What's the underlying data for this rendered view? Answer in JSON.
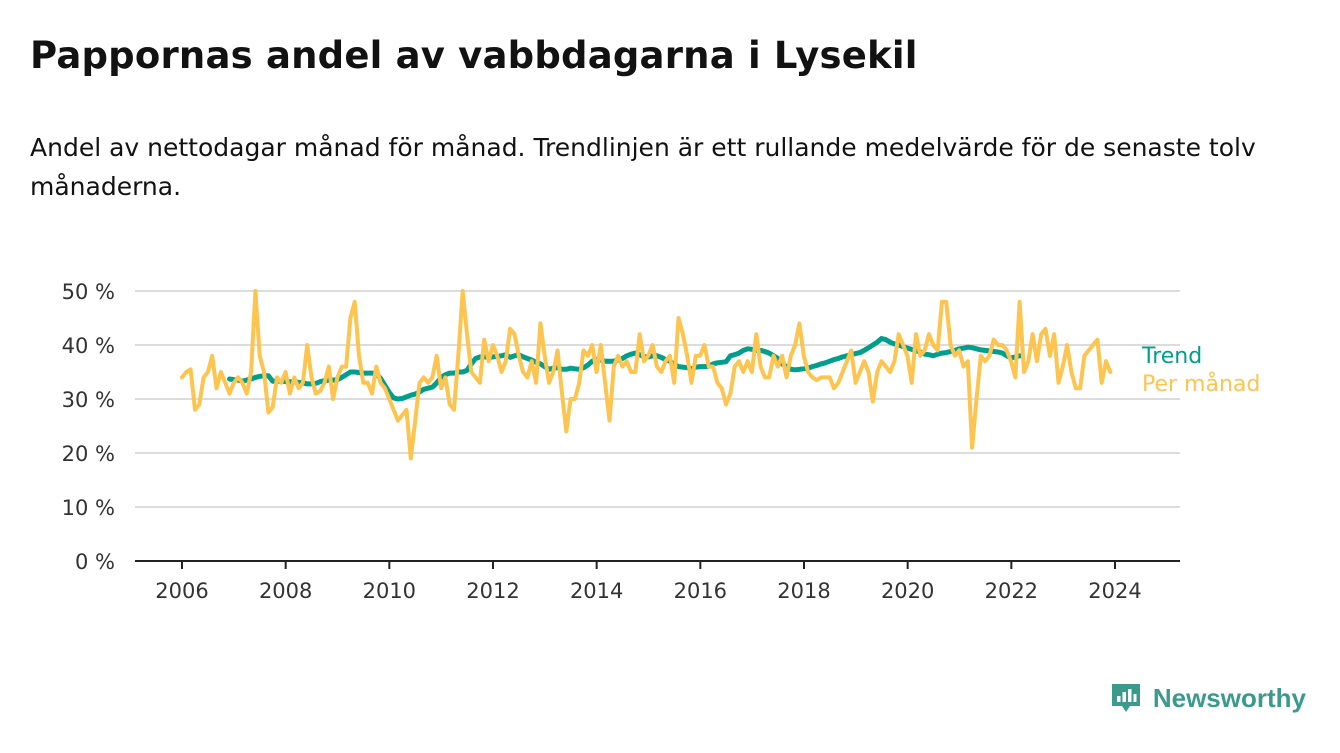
{
  "title": "Pappornas andel av vabbdagarna i Lysekil",
  "subtitle": "Andel av nettodagar månad för månad. Trendlinjen är ett rullande medelvärde för de senaste tolv månaderna.",
  "brand": {
    "name": "Newsworthy",
    "icon": "bar-chart-badge-icon"
  },
  "colors": {
    "monthly": "#fdc44f",
    "trend": "#009e8c",
    "grid": "#dcdcdc",
    "axis": "#222222",
    "text": "#121212",
    "brand": "#3a9a8c"
  },
  "chart_data": {
    "type": "line",
    "x_unit": "decimal year (each point is a month)",
    "xlim": [
      2005.5,
      2025.0
    ],
    "ylim": [
      0,
      50
    ],
    "y_ticks": [
      0,
      10,
      20,
      30,
      40,
      50
    ],
    "y_tick_labels": [
      "0 %",
      "10 %",
      "20 %",
      "30 %",
      "40 %",
      "50 %"
    ],
    "x_ticks": [
      2006,
      2008,
      2010,
      2012,
      2014,
      2016,
      2018,
      2020,
      2022,
      2024
    ],
    "x_tick_labels": [
      "2006",
      "2008",
      "2010",
      "2012",
      "2014",
      "2016",
      "2018",
      "2020",
      "2022",
      "2024"
    ],
    "grid": "horizontal",
    "legend": "inline labels at line ends, right",
    "series": [
      {
        "name": "Per månad",
        "color": "#fdc44f",
        "x_start": 2006.0,
        "step": 0.0833,
        "values": [
          34,
          35,
          35.5,
          28,
          29,
          34,
          35,
          38,
          32,
          35,
          33,
          31,
          33,
          34,
          33,
          31,
          35,
          50,
          38,
          35,
          27.5,
          28.5,
          34,
          33,
          35,
          31,
          34,
          32,
          33,
          40,
          34,
          31,
          31.5,
          33,
          36,
          30,
          34,
          36,
          36,
          45,
          48,
          38,
          33,
          33,
          31,
          36,
          33,
          32,
          30,
          28,
          26,
          27,
          28,
          19,
          26,
          33,
          34,
          33,
          34,
          38,
          32,
          34,
          29,
          28,
          38,
          50,
          42,
          35,
          34,
          33,
          41,
          37,
          40,
          38,
          35,
          37,
          43,
          42,
          38,
          35,
          34,
          37,
          33,
          44,
          38,
          33,
          35,
          39,
          31,
          24,
          30,
          30,
          33,
          39,
          38,
          40,
          35,
          40,
          33,
          26,
          36,
          38,
          36,
          37,
          35,
          35,
          42,
          37,
          38,
          40,
          36,
          35,
          37,
          38,
          33,
          45,
          42,
          38,
          33,
          38,
          38,
          40,
          36,
          36,
          33,
          32,
          29,
          31,
          36,
          37,
          35,
          37,
          35,
          42,
          36,
          34,
          34,
          38,
          36,
          38,
          34,
          38,
          40,
          44,
          38,
          35,
          34,
          33.5,
          34,
          34,
          34,
          32,
          33,
          35,
          37,
          39,
          33,
          35,
          37,
          35,
          29.5,
          35,
          37,
          36,
          35,
          37,
          42,
          40,
          38,
          33,
          42,
          38,
          39,
          42,
          40,
          39,
          48,
          48,
          40,
          38,
          39,
          36,
          37,
          21,
          30,
          38,
          37,
          38,
          41,
          40,
          40,
          39,
          37,
          34,
          48,
          35,
          37,
          42,
          37,
          42,
          43,
          38,
          42,
          33,
          36,
          40,
          35,
          32,
          32,
          38,
          39,
          40,
          41,
          33,
          37,
          35
        ]
      },
      {
        "name": "Trend",
        "color": "#009e8c",
        "x_start": 2006.917,
        "step": 0.0833,
        "values": [
          33.7,
          33.6,
          33.5,
          33.3,
          33.5,
          33.7,
          34,
          34.2,
          34.3,
          34.3,
          33.3,
          33.3,
          33.3,
          33.2,
          33.2,
          33.2,
          33.1,
          33,
          32.8,
          32.8,
          32.9,
          33.2,
          33.4,
          33.5,
          33.5,
          33.6,
          34,
          34.5,
          35,
          35,
          34.9,
          34.8,
          34.8,
          34.8,
          34.7,
          33.8,
          32.5,
          31.2,
          30.2,
          30,
          30.1,
          30.4,
          30.7,
          30.9,
          31.3,
          31.8,
          32,
          32.2,
          33,
          34,
          34.5,
          34.8,
          34.8,
          35,
          35,
          35.3,
          36.5,
          37.5,
          37.8,
          37.8,
          37.7,
          37.8,
          37.9,
          38,
          38.2,
          37.7,
          38,
          38.2,
          37.8,
          37.5,
          37.2,
          36.8,
          36.5,
          36,
          35.5,
          35.7,
          35.8,
          35.5,
          35.5,
          35.7,
          35.6,
          35.5,
          35.8,
          36.3,
          37,
          37.3,
          37.2,
          37,
          37,
          37,
          37.2,
          37.5,
          38,
          38.3,
          38.5,
          38.2,
          37.8,
          37.8,
          38,
          38,
          37.7,
          37.3,
          37,
          36.4,
          36,
          35.9,
          35.8,
          35.6,
          35.9,
          36,
          36,
          36.1,
          36.5,
          36.7,
          36.8,
          36.9,
          38,
          38.2,
          38.5,
          39,
          39.3,
          39.2,
          39,
          39,
          38.8,
          38.5,
          38,
          37.5,
          36.5,
          36,
          35.5,
          35.4,
          35.5,
          35.6,
          35.7,
          36,
          36.2,
          36.5,
          36.7,
          37,
          37.3,
          37.5,
          37.8,
          38,
          38.2,
          38.4,
          38.6,
          39,
          39.5,
          40,
          40.5,
          41.2,
          41,
          40.5,
          40.2,
          40,
          39.7,
          39.4,
          39.2,
          38.9,
          38.7,
          38.3,
          38.2,
          38,
          38.3,
          38.5,
          38.6,
          38.8,
          39,
          39.3,
          39.4,
          39.6,
          39.5,
          39.3,
          39.1,
          39,
          38.9,
          38.8,
          38.7,
          38.5,
          38,
          37.6,
          37.8,
          38
        ]
      }
    ]
  }
}
